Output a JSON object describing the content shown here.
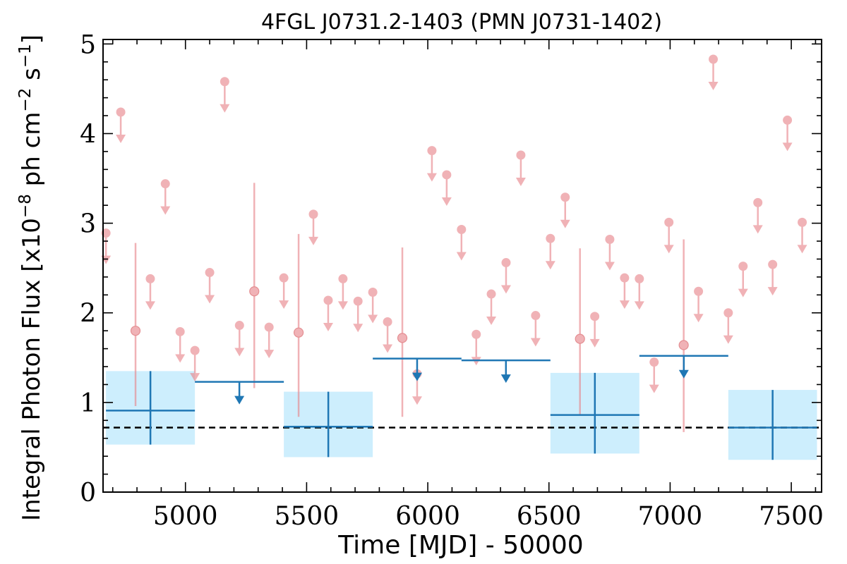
{
  "chart_data": {
    "type": "scatter",
    "title": "4FGL J0731.2-1403 (PMN J0731-1402)",
    "xlabel": "Time [MJD] - 50000",
    "ylabel": "Integral Photon Flux [x10$^{-8}$ ph cm$^{-2}$ s$^{-1}$]",
    "ylabel_parts": {
      "base": "Integral Photon Flux [x10",
      "e1": "−8",
      "mid": " ph cm",
      "e2": "−2",
      "mid2": " s",
      "e3": "−1",
      "tail": "]"
    },
    "xlim": [
      4660,
      7625
    ],
    "ylim": [
      0,
      5.05
    ],
    "xticks": [
      5000,
      5500,
      6000,
      6500,
      7000,
      7500
    ],
    "yticks": [
      0,
      1,
      2,
      3,
      4,
      5
    ],
    "reference_line": 0.72,
    "colors": {
      "short": "#e8848a",
      "long": "#1f77b4",
      "band": "#cdeefd",
      "reference": "#000000"
    },
    "short_bins": {
      "name": "short bins",
      "upper_limits": [
        {
          "x": 4672,
          "y": 2.89
        },
        {
          "x": 4733,
          "y": 4.24
        },
        {
          "x": 4855,
          "y": 2.38
        },
        {
          "x": 4917,
          "y": 3.44
        },
        {
          "x": 4978,
          "y": 1.79
        },
        {
          "x": 5039,
          "y": 1.58
        },
        {
          "x": 5100,
          "y": 2.45
        },
        {
          "x": 5162,
          "y": 4.58
        },
        {
          "x": 5223,
          "y": 1.86
        },
        {
          "x": 5345,
          "y": 1.84
        },
        {
          "x": 5406,
          "y": 2.39
        },
        {
          "x": 5528,
          "y": 3.1
        },
        {
          "x": 5589,
          "y": 2.14
        },
        {
          "x": 5650,
          "y": 2.38
        },
        {
          "x": 5712,
          "y": 2.13
        },
        {
          "x": 5773,
          "y": 2.23
        },
        {
          "x": 5834,
          "y": 1.9
        },
        {
          "x": 5956,
          "y": 1.32
        },
        {
          "x": 6017,
          "y": 3.81
        },
        {
          "x": 6078,
          "y": 3.54
        },
        {
          "x": 6139,
          "y": 2.93
        },
        {
          "x": 6200,
          "y": 1.76
        },
        {
          "x": 6262,
          "y": 2.21
        },
        {
          "x": 6323,
          "y": 2.56
        },
        {
          "x": 6384,
          "y": 3.76
        },
        {
          "x": 6445,
          "y": 1.97
        },
        {
          "x": 6506,
          "y": 2.83
        },
        {
          "x": 6567,
          "y": 3.29
        },
        {
          "x": 6689,
          "y": 1.96
        },
        {
          "x": 6751,
          "y": 2.82
        },
        {
          "x": 6812,
          "y": 2.39
        },
        {
          "x": 6873,
          "y": 2.38
        },
        {
          "x": 6934,
          "y": 1.45
        },
        {
          "x": 6995,
          "y": 3.01
        },
        {
          "x": 7117,
          "y": 2.24
        },
        {
          "x": 7178,
          "y": 4.83
        },
        {
          "x": 7240,
          "y": 2.0
        },
        {
          "x": 7301,
          "y": 2.52
        },
        {
          "x": 7362,
          "y": 3.23
        },
        {
          "x": 7423,
          "y": 2.54
        },
        {
          "x": 7484,
          "y": 4.15
        },
        {
          "x": 7545,
          "y": 3.01
        }
      ],
      "detections": [
        {
          "x": 4794,
          "y": 1.8,
          "ylo": 0.96,
          "yhi": 2.78
        },
        {
          "x": 5284,
          "y": 2.24,
          "ylo": 1.16,
          "yhi": 3.45
        },
        {
          "x": 5467,
          "y": 1.78,
          "ylo": 0.84,
          "yhi": 2.88
        },
        {
          "x": 5895,
          "y": 1.72,
          "ylo": 0.84,
          "yhi": 2.73
        },
        {
          "x": 6628,
          "y": 1.71,
          "ylo": 0.86,
          "yhi": 2.72
        },
        {
          "x": 7056,
          "y": 1.64,
          "ylo": 0.67,
          "yhi": 2.82
        }
      ]
    },
    "long_bins": {
      "name": "long bins",
      "detections": [
        {
          "x0": 4672,
          "x1": 5039,
          "y": 0.91,
          "ylo": 0.53,
          "yhi": 1.35
        },
        {
          "x0": 5406,
          "x1": 5773,
          "y": 0.73,
          "ylo": 0.39,
          "yhi": 1.12
        },
        {
          "x0": 6506,
          "x1": 6873,
          "y": 0.86,
          "ylo": 0.43,
          "yhi": 1.33
        },
        {
          "x0": 7240,
          "x1": 7606,
          "y": 0.72,
          "ylo": 0.36,
          "yhi": 1.14
        }
      ],
      "upper_limits": [
        {
          "x0": 5039,
          "x1": 5406,
          "y": 1.23
        },
        {
          "x0": 5773,
          "x1": 6139,
          "y": 1.49
        },
        {
          "x0": 6139,
          "x1": 6506,
          "y": 1.47
        },
        {
          "x0": 6873,
          "x1": 7240,
          "y": 1.52
        }
      ]
    }
  }
}
